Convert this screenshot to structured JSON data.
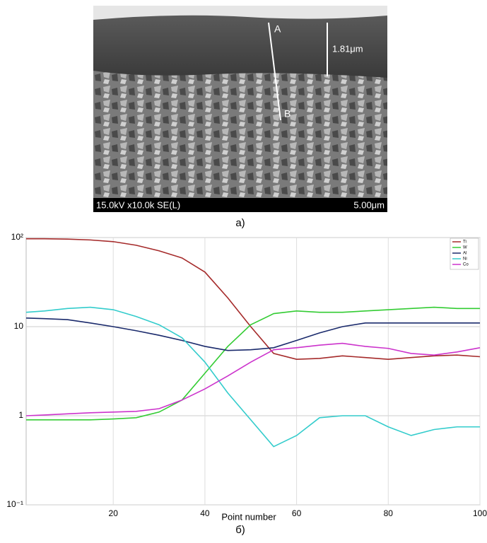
{
  "image_a": {
    "point_a": "A",
    "point_b": "B",
    "thickness": "1.81μm",
    "info": "15.0kV x10.0k SE(L)",
    "scale": "5.00μm",
    "caption": "а)"
  },
  "chart_data": {
    "type": "line",
    "caption": "б)",
    "xlabel": "Point number",
    "log_y": true,
    "grid": true,
    "legend": "top-right",
    "x": [
      1,
      5,
      10,
      15,
      20,
      25,
      30,
      35,
      40,
      45,
      50,
      55,
      60,
      65,
      70,
      75,
      80,
      85,
      90,
      95,
      100
    ],
    "xlim": [
      1,
      100
    ],
    "xticks": [
      20,
      40,
      60,
      80,
      100
    ],
    "ylim": [
      0.1,
      100
    ],
    "yticks": [
      {
        "value": 100,
        "label": "10²"
      },
      10,
      1,
      {
        "value": 0.1,
        "label": "10⁻¹"
      }
    ],
    "series": [
      {
        "name": "Ti",
        "color": "#a52a2a",
        "values": [
          97,
          97,
          96,
          94,
          90,
          82,
          71,
          59,
          41,
          21,
          10,
          5,
          4.3,
          4.4,
          4.7,
          4.5,
          4.3,
          4.5,
          4.7,
          4.8,
          4.6
        ]
      },
      {
        "name": "W",
        "color": "#33cc33",
        "values": [
          0.9,
          0.9,
          0.9,
          0.9,
          0.92,
          0.95,
          1.1,
          1.5,
          3.0,
          6,
          10.5,
          14,
          15,
          14.5,
          14.5,
          15,
          15.5,
          16,
          16.5,
          16,
          16
        ]
      },
      {
        "name": "Al",
        "color": "#1a2a6c",
        "values": [
          12.5,
          12.3,
          12,
          11,
          10,
          9,
          8,
          7,
          6,
          5.4,
          5.5,
          5.8,
          7,
          8.5,
          10,
          11,
          11,
          11,
          11,
          11,
          11
        ]
      },
      {
        "name": "Ni",
        "color": "#33cccc",
        "values": [
          14.5,
          15,
          16,
          16.5,
          15.5,
          13,
          10.5,
          7.5,
          4,
          1.8,
          0.9,
          0.45,
          0.6,
          0.95,
          1.0,
          1.0,
          0.75,
          0.6,
          0.7,
          0.75,
          0.75
        ]
      },
      {
        "name": "Co",
        "color": "#cc33cc",
        "values": [
          1.0,
          1.02,
          1.05,
          1.08,
          1.1,
          1.12,
          1.2,
          1.5,
          2.0,
          2.8,
          4,
          5.5,
          5.8,
          6.2,
          6.5,
          6.0,
          5.7,
          5,
          4.8,
          5.2,
          5.8
        ]
      }
    ]
  }
}
